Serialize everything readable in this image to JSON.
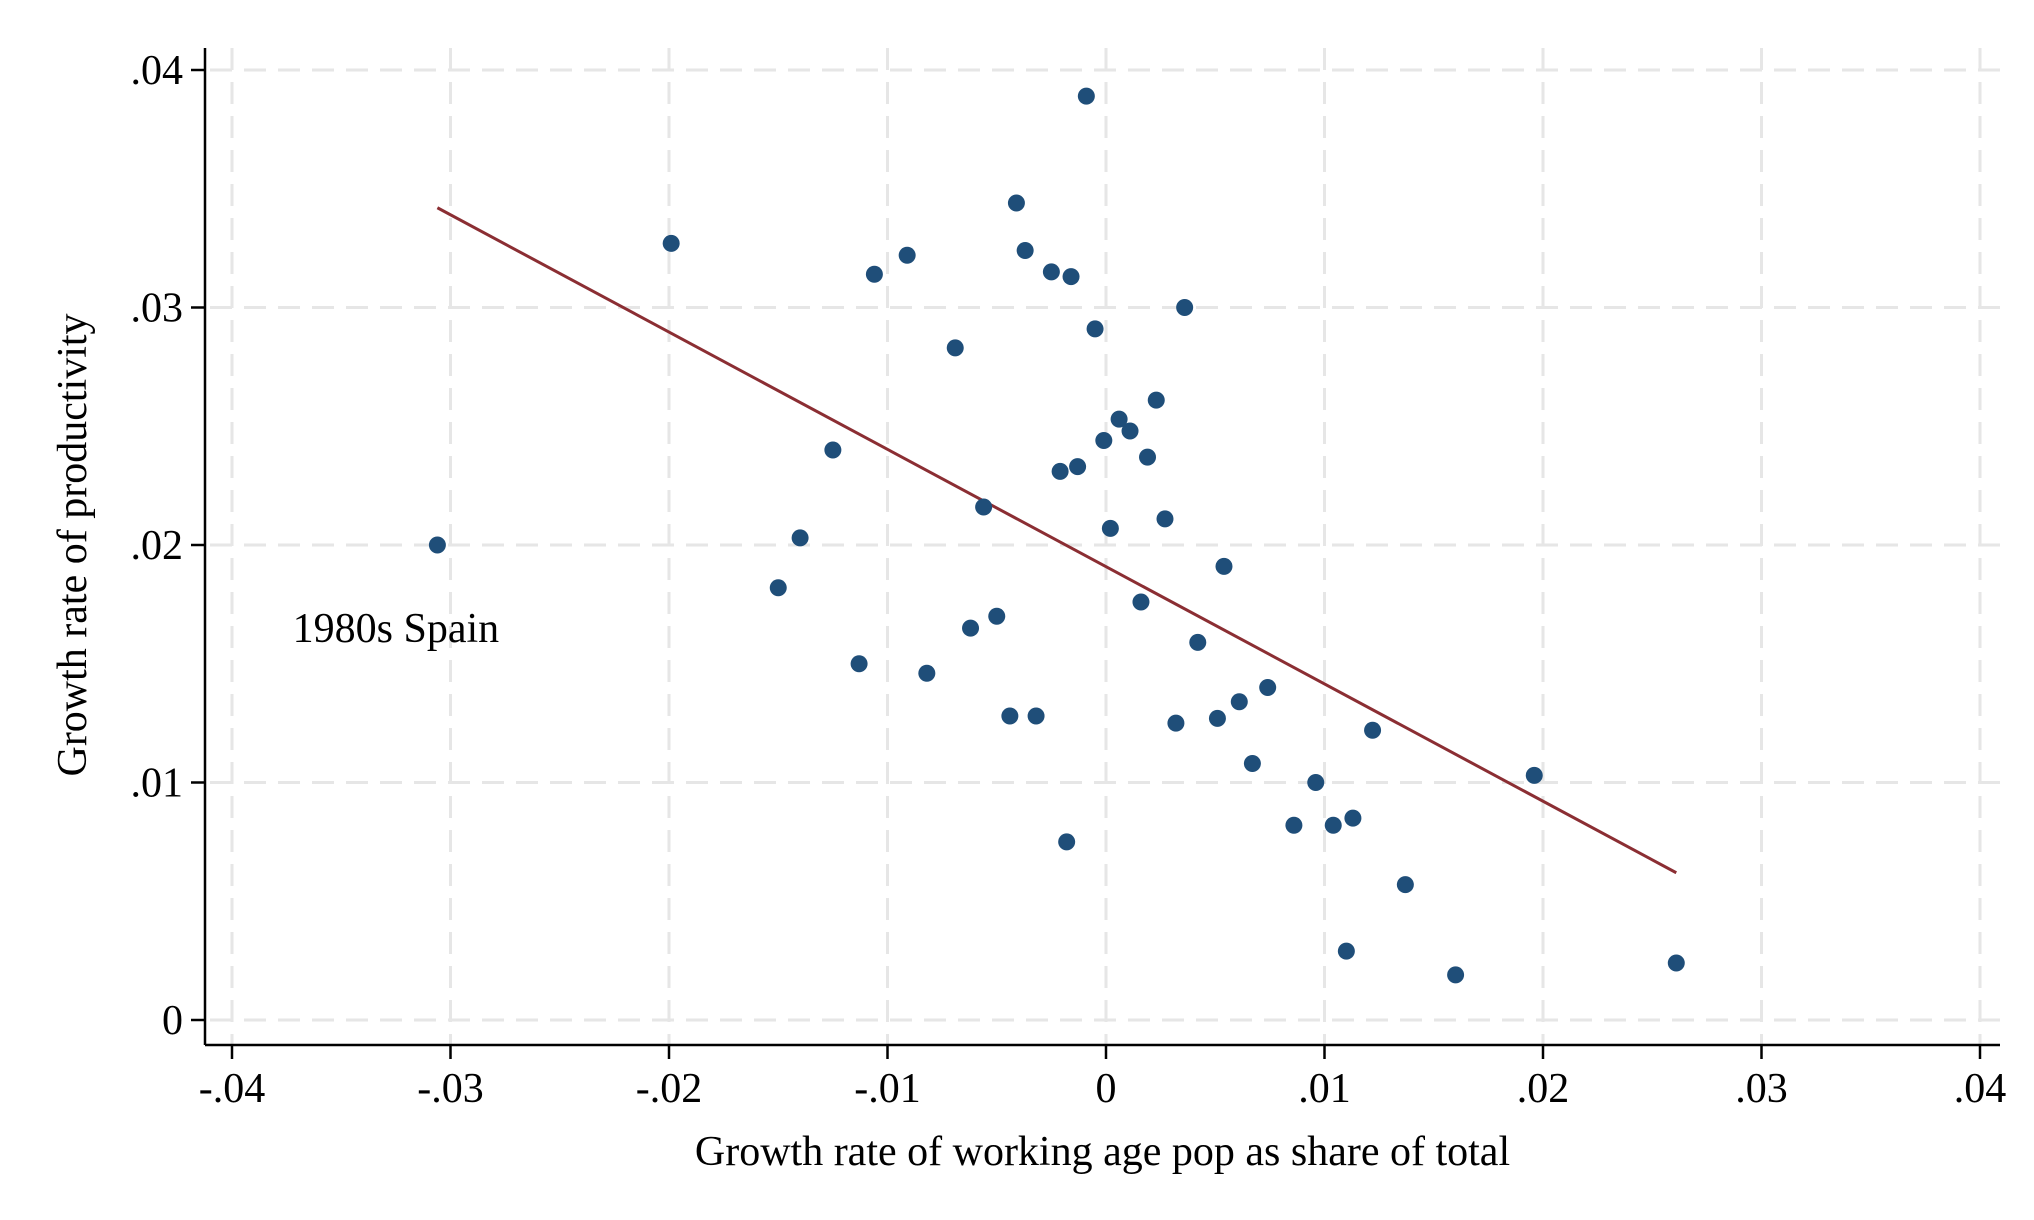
{
  "chart_data": {
    "type": "scatter",
    "title": "",
    "xlabel": "Growth rate of working age pop as share of total",
    "ylabel": "Growth rate of productivity",
    "xlim": [
      -0.04,
      0.04
    ],
    "ylim": [
      0,
      0.04
    ],
    "xticks": [
      -0.04,
      -0.03,
      -0.02,
      -0.01,
      0,
      0.01,
      0.02,
      0.03,
      0.04
    ],
    "xtick_labels": [
      "-.04",
      "-.03",
      "-.02",
      "-.01",
      "0",
      ".01",
      ".02",
      ".03",
      ".04"
    ],
    "yticks": [
      0,
      0.01,
      0.02,
      0.03,
      0.04
    ],
    "ytick_labels": [
      "0",
      ".01",
      ".02",
      ".03",
      ".04"
    ],
    "grid": true,
    "colors": {
      "points": "#1f4e79",
      "fit_line": "#8b2e33",
      "grid": "#e6e6e6"
    },
    "annotations": [
      {
        "text": "1980s Spain",
        "x": -0.0325,
        "y": 0.0165
      }
    ],
    "series": [
      {
        "type": "scatter",
        "points": [
          [
            -0.0306,
            0.02
          ],
          [
            -0.0199,
            0.0327
          ],
          [
            -0.015,
            0.0182
          ],
          [
            -0.014,
            0.0203
          ],
          [
            -0.0125,
            0.024
          ],
          [
            -0.0113,
            0.015
          ],
          [
            -0.0106,
            0.0314
          ],
          [
            -0.0091,
            0.0322
          ],
          [
            -0.0082,
            0.0146
          ],
          [
            -0.0069,
            0.0283
          ],
          [
            -0.0062,
            0.0165
          ],
          [
            -0.0056,
            0.0216
          ],
          [
            -0.005,
            0.017
          ],
          [
            -0.0044,
            0.0128
          ],
          [
            -0.0041,
            0.0344
          ],
          [
            -0.0037,
            0.0324
          ],
          [
            -0.0032,
            0.0128
          ],
          [
            -0.0025,
            0.0315
          ],
          [
            -0.0021,
            0.0231
          ],
          [
            -0.0018,
            0.0075
          ],
          [
            -0.0016,
            0.0313
          ],
          [
            -0.0013,
            0.0233
          ],
          [
            -0.0009,
            0.0389
          ],
          [
            -0.0005,
            0.0291
          ],
          [
            -0.0001,
            0.0244
          ],
          [
            0.0002,
            0.0207
          ],
          [
            0.0006,
            0.0253
          ],
          [
            0.0011,
            0.0248
          ],
          [
            0.0016,
            0.0176
          ],
          [
            0.0019,
            0.0237
          ],
          [
            0.0023,
            0.0261
          ],
          [
            0.0027,
            0.0211
          ],
          [
            0.0032,
            0.0125
          ],
          [
            0.0036,
            0.03
          ],
          [
            0.0042,
            0.0159
          ],
          [
            0.0051,
            0.0127
          ],
          [
            0.0054,
            0.0191
          ],
          [
            0.0061,
            0.0134
          ],
          [
            0.0067,
            0.0108
          ],
          [
            0.0074,
            0.014
          ],
          [
            0.0086,
            0.0082
          ],
          [
            0.0096,
            0.01
          ],
          [
            0.0104,
            0.0082
          ],
          [
            0.011,
            0.0029
          ],
          [
            0.0113,
            0.0085
          ],
          [
            0.0122,
            0.0122
          ],
          [
            0.0137,
            0.0057
          ],
          [
            0.016,
            0.0019
          ],
          [
            0.0196,
            0.0103
          ],
          [
            0.0261,
            0.0024
          ]
        ]
      },
      {
        "type": "line",
        "points": [
          [
            -0.0306,
            0.0342
          ],
          [
            0.0261,
            0.0062
          ]
        ]
      }
    ]
  }
}
